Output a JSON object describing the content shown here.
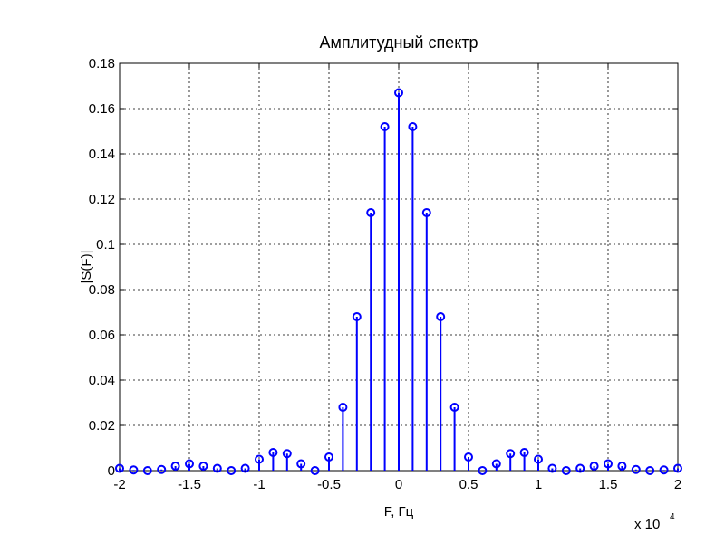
{
  "chart_data": {
    "type": "stem",
    "title": "Амплитудный спектр",
    "xlabel": "F, Гц",
    "ylabel": "|S(F)|",
    "x_scale_label": {
      "base": "x 10",
      "exponent": "4"
    },
    "x": [
      -2,
      -1.9,
      -1.8,
      -1.7,
      -1.6,
      -1.5,
      -1.4,
      -1.3,
      -1.2,
      -1.1,
      -1,
      -0.9,
      -0.8,
      -0.7,
      -0.6,
      -0.5,
      -0.4,
      -0.3,
      -0.2,
      -0.1,
      0,
      0.1,
      0.2,
      0.3,
      0.4,
      0.5,
      0.6,
      0.7,
      0.8,
      0.9,
      1,
      1.1,
      1.2,
      1.3,
      1.4,
      1.5,
      1.6,
      1.7,
      1.8,
      1.9,
      2
    ],
    "series": [
      {
        "color": "#0000ff",
        "values": [
          0.001,
          0.0003,
          0,
          0.0005,
          0.002,
          0.003,
          0.002,
          0.001,
          0,
          0.001,
          0.005,
          0.008,
          0.0075,
          0.003,
          0,
          0.006,
          0.028,
          0.068,
          0.114,
          0.152,
          0.167,
          0.152,
          0.114,
          0.068,
          0.028,
          0.006,
          0,
          0.003,
          0.0075,
          0.008,
          0.005,
          0.001,
          0,
          0.001,
          0.002,
          0.003,
          0.002,
          0.0005,
          0,
          0.0003,
          0.001
        ]
      }
    ],
    "xlim": [
      -2,
      2
    ],
    "xticks": [
      -2,
      -1.5,
      -1,
      -0.5,
      0,
      0.5,
      1,
      1.5,
      2
    ],
    "ylim": [
      0,
      0.18
    ],
    "yticks": [
      0,
      0.02,
      0.04,
      0.06,
      0.08,
      0.1,
      0.12,
      0.14,
      0.16,
      0.18
    ],
    "grid": true
  }
}
